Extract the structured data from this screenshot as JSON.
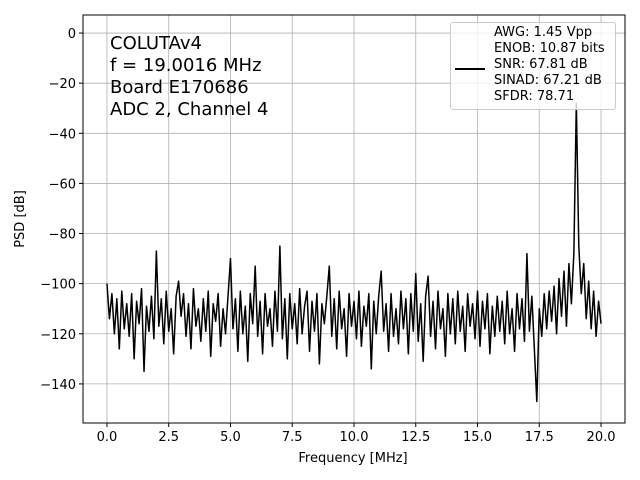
{
  "chart_data": {
    "type": "line",
    "xlabel": "Frequency [MHz]",
    "ylabel": "PSD [dB]",
    "annotation_lines": [
      "COLUTAv4",
      "f = 19.0016 MHz",
      "Board E170686",
      "ADC 2, Channel 4"
    ],
    "legend_corner": "upper right",
    "grid": true,
    "xlim": [
      -0.97,
      20.97
    ],
    "ylim": [
      -155.6,
      7.2
    ],
    "xticks": [
      {
        "value": 0,
        "label": "0.0"
      },
      2.5,
      {
        "value": 5,
        "label": "5.0"
      },
      7.5,
      {
        "value": 10,
        "label": "10.0"
      },
      12.5,
      {
        "value": 15,
        "label": "15.0"
      },
      17.5,
      {
        "value": 20,
        "label": "20.0"
      }
    ],
    "yticks": [
      {
        "value": -140,
        "label": "−140"
      },
      {
        "value": -120,
        "label": "−120"
      },
      {
        "value": -100,
        "label": "−100"
      },
      {
        "value": -80,
        "label": "−80"
      },
      {
        "value": -60,
        "label": "−60"
      },
      {
        "value": -40,
        "label": "−40"
      },
      {
        "value": -20,
        "label": "−20"
      },
      0
    ],
    "x": [
      0,
      0.1,
      0.2,
      0.3,
      0.4,
      0.5,
      0.6,
      0.7,
      0.8,
      0.9,
      1,
      1.1,
      1.2,
      1.3,
      1.4,
      1.5,
      1.6,
      1.7,
      1.8,
      1.9,
      2,
      2.1,
      2.2,
      2.3,
      2.4,
      2.5,
      2.6,
      2.7,
      2.8,
      2.9,
      3,
      3.1,
      3.2,
      3.3,
      3.4,
      3.5,
      3.6,
      3.7,
      3.8,
      3.9,
      4,
      4.1,
      4.2,
      4.3,
      4.4,
      4.5,
      4.6,
      4.7,
      4.8,
      4.9,
      5,
      5.1,
      5.2,
      5.3,
      5.4,
      5.5,
      5.6,
      5.7,
      5.8,
      5.9,
      6,
      6.1,
      6.2,
      6.3,
      6.4,
      6.5,
      6.6,
      6.7,
      6.8,
      6.9,
      7,
      7.1,
      7.2,
      7.3,
      7.4,
      7.5,
      7.6,
      7.7,
      7.8,
      7.9,
      8,
      8.1,
      8.2,
      8.3,
      8.4,
      8.5,
      8.6,
      8.7,
      8.8,
      8.9,
      9,
      9.1,
      9.2,
      9.3,
      9.4,
      9.5,
      9.6,
      9.7,
      9.8,
      9.9,
      10,
      10.1,
      10.2,
      10.3,
      10.4,
      10.5,
      10.6,
      10.7,
      10.8,
      10.9,
      11,
      11.1,
      11.2,
      11.3,
      11.4,
      11.5,
      11.6,
      11.7,
      11.8,
      11.9,
      12,
      12.1,
      12.2,
      12.3,
      12.4,
      12.5,
      12.6,
      12.7,
      12.8,
      12.9,
      13,
      13.1,
      13.2,
      13.3,
      13.4,
      13.5,
      13.6,
      13.7,
      13.8,
      13.9,
      14,
      14.1,
      14.2,
      14.3,
      14.4,
      14.5,
      14.6,
      14.7,
      14.8,
      14.9,
      15,
      15.1,
      15.2,
      15.3,
      15.4,
      15.5,
      15.6,
      15.7,
      15.8,
      15.9,
      16,
      16.1,
      16.2,
      16.3,
      16.4,
      16.5,
      16.6,
      16.7,
      16.8,
      16.9,
      17,
      17.1,
      17.2,
      17.3,
      17.4,
      17.5,
      17.6,
      17.7,
      17.8,
      17.9,
      18,
      18.1,
      18.2,
      18.3,
      18.4,
      18.5,
      18.6,
      18.7,
      18.8,
      18.9,
      19,
      19.1,
      19.2,
      19.3,
      19.4,
      19.5,
      19.6,
      19.7,
      19.8,
      19.9,
      20
    ],
    "series": [
      {
        "name": "AWG: 1.45 Vpp\nENOB: 10.87 bits\nSNR: 67.81 dB\nSINAD: 67.21 dB\nSFDR: 78.71",
        "color": "#000000",
        "values": [
          -100,
          -114,
          -104,
          -120,
          -106,
          -126,
          -103,
          -118,
          -108,
          -121,
          -104,
          -130,
          -107,
          -116,
          -102,
          -135,
          -109,
          -119,
          -105,
          -122,
          -87,
          -117,
          -106,
          -124,
          -103,
          -119,
          -110,
          -128,
          -105,
          -99,
          -113,
          -104,
          -121,
          -108,
          -126,
          -102,
          -117,
          -110,
          -123,
          -106,
          -119,
          -103,
          -129,
          -108,
          -115,
          -104,
          -125,
          -110,
          -120,
          -105,
          -90,
          -118,
          -106,
          -127,
          -103,
          -120,
          -109,
          -131,
          -104,
          -116,
          -93,
          -121,
          -107,
          -128,
          -104,
          -117,
          -110,
          -125,
          -103,
          -119,
          -85,
          -122,
          -106,
          -130,
          -104,
          -118,
          -108,
          -124,
          -102,
          -120,
          -109,
          -103,
          -127,
          -107,
          -119,
          -104,
          -132,
          -108,
          -116,
          -105,
          -93,
          -121,
          -106,
          -126,
          -103,
          -118,
          -110,
          -129,
          -104,
          -117,
          -107,
          -122,
          -103,
          -125,
          -109,
          -117,
          -104,
          -134,
          -107,
          -120,
          -105,
          -95,
          -119,
          -108,
          -127,
          -104,
          -121,
          -110,
          -124,
          -103,
          -118,
          -106,
          -128,
          -104,
          -119,
          -96,
          -123,
          -108,
          -131,
          -105,
          -97,
          -121,
          -107,
          -126,
          -103,
          -118,
          -110,
          -129,
          -104,
          -120,
          -106,
          -124,
          -103,
          -119,
          -109,
          -127,
          -104,
          -117,
          -108,
          -122,
          -103,
          -125,
          -107,
          -118,
          -104,
          -128,
          -109,
          -121,
          -105,
          -119,
          -107,
          -124,
          -103,
          -120,
          -110,
          -127,
          -104,
          -118,
          -106,
          -123,
          -88,
          -119,
          -105,
          -126,
          -147,
          -110,
          -121,
          -104,
          -118,
          -103,
          -115,
          -101,
          -120,
          -98,
          -113,
          -95,
          -117,
          -92,
          -108,
          -88,
          -28,
          -85,
          -104,
          -92,
          -114,
          -99,
          -118,
          -103,
          -121,
          -107,
          -116
        ]
      }
    ]
  }
}
